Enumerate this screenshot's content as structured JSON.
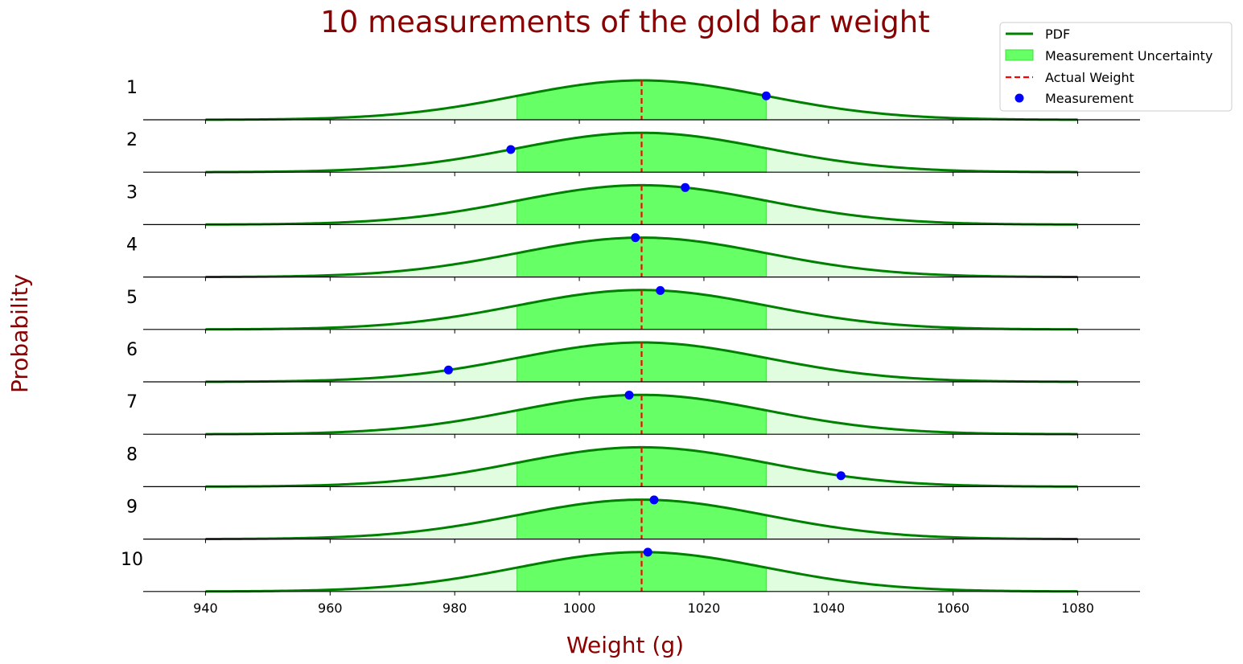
{
  "chart_data": {
    "type": "line",
    "title": "10 measurements of the gold bar weight",
    "xlabel": "Weight (g)",
    "ylabel": "Probability",
    "xlim": [
      930,
      1090
    ],
    "x_ticks": [
      "940",
      "960",
      "980",
      "1000",
      "1020",
      "1040",
      "1060",
      "1080"
    ],
    "x_tick_values": [
      940,
      960,
      980,
      1000,
      1020,
      1040,
      1060,
      1080
    ],
    "pdf_range": [
      940,
      1080
    ],
    "actual_weight": 1010,
    "std_dev": 20,
    "uncertainty_range": [
      990,
      1030
    ],
    "row_labels": [
      "1",
      "2",
      "3",
      "4",
      "5",
      "6",
      "7",
      "8",
      "9",
      "10"
    ],
    "measurements": [
      1030,
      989,
      1017,
      1009,
      1013,
      979,
      1008,
      1042,
      1012,
      1011
    ],
    "legend": {
      "position": "top-right",
      "entries": [
        "PDF",
        "Measurement Uncertainty",
        "Actual Weight",
        "Measurement"
      ]
    },
    "colors": {
      "pdf": "#008000",
      "uncertainty": "#66ff66",
      "outer_fill": "#e0fde0",
      "actual": "#ff0000",
      "measurement": "#0000ff",
      "text_accent": "#8b0000"
    }
  }
}
